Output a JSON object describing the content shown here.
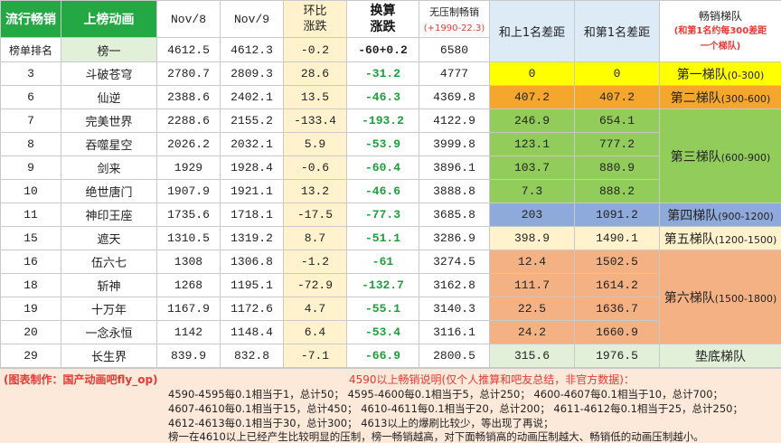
{
  "header": {
    "h1": "流行畅销",
    "h2": "上榜动画",
    "h3": "Nov/8",
    "h4": "Nov/9",
    "h5a": "环比",
    "h5b": "涨跌",
    "h6a": "换算",
    "h6b": "涨跌",
    "h7a": "无压制畅销",
    "h7b": "(+1990-22.3)",
    "h8": "和上1名差距",
    "h9": "和第1名差距",
    "h10a": "畅销梯队",
    "h10b": "(和第1名约每300差距",
    "h10c": "一个梯队)"
  },
  "subheader": {
    "rank_label": "榜单排名",
    "top": "榜一",
    "nov8": "4612.5",
    "nov9": "4612.3",
    "chg": "-0.2",
    "conv": "-60+0.2",
    "nopress": "6580"
  },
  "rows": [
    {
      "rank": "3",
      "name": "斗破苍穹",
      "nov8": "2780.7",
      "nov9": "2809.3",
      "chg": "28.6",
      "conv": "-31.2",
      "nopress": "4777",
      "gap_prev": "0",
      "gap_first": "0"
    },
    {
      "rank": "6",
      "name": "仙逆",
      "nov8": "2388.6",
      "nov9": "2402.1",
      "chg": "13.5",
      "conv": "-46.3",
      "nopress": "4369.8",
      "gap_prev": "407.2",
      "gap_first": "407.2"
    },
    {
      "rank": "7",
      "name": "完美世界",
      "nov8": "2288.6",
      "nov9": "2155.2",
      "chg": "-133.4",
      "conv": "-193.2",
      "nopress": "4122.9",
      "gap_prev": "246.9",
      "gap_first": "654.1"
    },
    {
      "rank": "8",
      "name": "吞噬星空",
      "nov8": "2026.2",
      "nov9": "2032.1",
      "chg": "5.9",
      "conv": "-53.9",
      "nopress": "3999.8",
      "gap_prev": "123.1",
      "gap_first": "777.2"
    },
    {
      "rank": "9",
      "name": "剑来",
      "nov8": "1929",
      "nov9": "1928.4",
      "chg": "-0.6",
      "conv": "-60.4",
      "nopress": "3896.1",
      "gap_prev": "103.7",
      "gap_first": "880.9"
    },
    {
      "rank": "10",
      "name": "绝世唐门",
      "nov8": "1907.9",
      "nov9": "1921.1",
      "chg": "13.2",
      "conv": "-46.6",
      "nopress": "3888.8",
      "gap_prev": "7.3",
      "gap_first": "888.2"
    },
    {
      "rank": "11",
      "name": "神印王座",
      "nov8": "1735.6",
      "nov9": "1718.1",
      "chg": "-17.5",
      "conv": "-77.3",
      "nopress": "3685.8",
      "gap_prev": "203",
      "gap_first": "1091.2"
    },
    {
      "rank": "15",
      "name": "遮天",
      "nov8": "1310.5",
      "nov9": "1319.2",
      "chg": "8.7",
      "conv": "-51.1",
      "nopress": "3286.9",
      "gap_prev": "398.9",
      "gap_first": "1490.1"
    },
    {
      "rank": "16",
      "name": "伍六七",
      "nov8": "1308",
      "nov9": "1306.8",
      "chg": "-1.2",
      "conv": "-61",
      "nopress": "3274.5",
      "gap_prev": "12.4",
      "gap_first": "1502.5"
    },
    {
      "rank": "18",
      "name": "斩神",
      "nov8": "1268",
      "nov9": "1195.1",
      "chg": "-72.9",
      "conv": "-132.7",
      "nopress": "3162.8",
      "gap_prev": "111.7",
      "gap_first": "1614.2"
    },
    {
      "rank": "19",
      "name": "十万年",
      "nov8": "1167.9",
      "nov9": "1172.6",
      "chg": "4.7",
      "conv": "-55.1",
      "nopress": "3140.3",
      "gap_prev": "22.5",
      "gap_first": "1636.7"
    },
    {
      "rank": "20",
      "name": "一念永恒",
      "nov8": "1142",
      "nov9": "1148.4",
      "chg": "6.4",
      "conv": "-53.4",
      "nopress": "3116.1",
      "gap_prev": "24.2",
      "gap_first": "1660.9"
    },
    {
      "rank": "29",
      "name": "长生界",
      "nov8": "839.9",
      "nov9": "832.8",
      "chg": "-7.1",
      "conv": "-66.9",
      "nopress": "2800.5",
      "gap_prev": "315.6",
      "gap_first": "1976.5"
    }
  ],
  "tiers": {
    "t1": "第一梯队",
    "t1r": "(0-300)",
    "t2": "第二梯队",
    "t2r": "(300-600)",
    "t3": "第三梯队",
    "t3r": "(600-900)",
    "t4": "第四梯队",
    "t4r": "(900-1200)",
    "t5": "第五梯队",
    "t5r": "(1200-1500)",
    "t6": "第六梯队",
    "t6r": "(1500-1800)",
    "t7": "垫底梯队"
  },
  "notes": {
    "credit": "(图表制作：国产动画吧fly_op)",
    "title": "4590以上畅销说明(仅个人推算和吧友总结，非官方数据)：",
    "l1": "4590-4595每0.1相当于1，总计50；    4595-4600每0.1相当于5，总计250；  4600-4607每0.1相当于10，总计700；",
    "l2": "4607-4610每0.1相当于15，总计450；  4610-4611每0.1相当于20，总计200；  4611-4612每0.1相当于25，总计250；",
    "l3": "4612-4613每0.1相当于30，总计300；  4613以上的爆刷比较少，等出现了再说；",
    "l4": "榜一在4610以上已经产生比较明显的压制，榜一畅销越高，对下面畅销高的动画压制越大、畅销低的动画压制越小。"
  },
  "colors": {
    "tier1": "#ffff00",
    "tier2": "#f4a72c",
    "tier3": "#92cc5a",
    "tier4": "#8eaadb",
    "tier5": "#fff2cc",
    "tier6": "#f4b183",
    "tier7": "#e2efd9"
  }
}
